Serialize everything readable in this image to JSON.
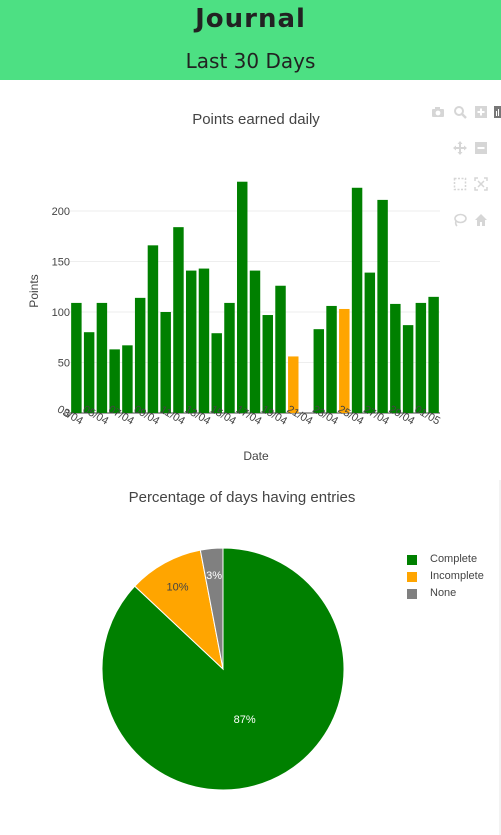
{
  "header": {
    "title": "Journal",
    "subtitle": "Last 30 Days"
  },
  "toolbar": {
    "icons": [
      "camera-icon",
      "zoom-icon",
      "zoom-in-icon",
      "plotly-logo-icon",
      "pan-icon",
      "zoom-out-icon",
      "box-select-icon",
      "autoscale-icon",
      "lasso-icon",
      "reset-axes-icon"
    ]
  },
  "colors": {
    "header": "#4de083",
    "complete": "#008000",
    "incomplete": "#ffa500",
    "none": "#808080"
  },
  "chart_data": [
    {
      "type": "bar",
      "title": "Points earned daily",
      "xlabel": "Date",
      "ylabel": "Points",
      "ylim": [
        0,
        240
      ],
      "yticks": [
        0,
        50,
        100,
        150,
        200
      ],
      "grid": true,
      "tick_labels": [
        "03/04",
        "05/04",
        "07/04",
        "09/04",
        "11/04",
        "13/04",
        "15/04",
        "17/04",
        "19/04",
        "21/04",
        "23/04",
        "25/04",
        "27/04",
        "29/04",
        "01/05"
      ],
      "dates": [
        "03/04",
        "04/04",
        "05/04",
        "06/04",
        "07/04",
        "08/04",
        "09/04",
        "10/04",
        "11/04",
        "12/04",
        "13/04",
        "14/04",
        "15/04",
        "16/04",
        "17/04",
        "18/04",
        "19/04",
        "20/04",
        "21/04",
        "22/04",
        "23/04",
        "24/04",
        "25/04",
        "26/04",
        "27/04",
        "28/04",
        "29/04",
        "30/04",
        "01/05"
      ],
      "values": [
        109,
        80,
        109,
        63,
        67,
        114,
        166,
        100,
        184,
        141,
        143,
        79,
        109,
        229,
        141,
        97,
        126,
        56,
        0,
        83,
        106,
        103,
        223,
        139,
        211,
        108,
        87,
        109,
        115
      ],
      "status": [
        "complete",
        "complete",
        "complete",
        "complete",
        "complete",
        "complete",
        "complete",
        "complete",
        "complete",
        "complete",
        "complete",
        "complete",
        "complete",
        "complete",
        "complete",
        "complete",
        "complete",
        "incomplete",
        "none",
        "complete",
        "complete",
        "incomplete",
        "complete",
        "complete",
        "complete",
        "complete",
        "complete",
        "complete",
        "complete"
      ]
    },
    {
      "type": "pie",
      "title": "Percentage of days having entries",
      "labels": [
        "Complete",
        "Incomplete",
        "None"
      ],
      "values": [
        87,
        10,
        3
      ],
      "value_labels": [
        "87%",
        "10%",
        "3%"
      ],
      "colors": [
        "#008000",
        "#ffa500",
        "#808080"
      ],
      "legend": "right"
    }
  ]
}
